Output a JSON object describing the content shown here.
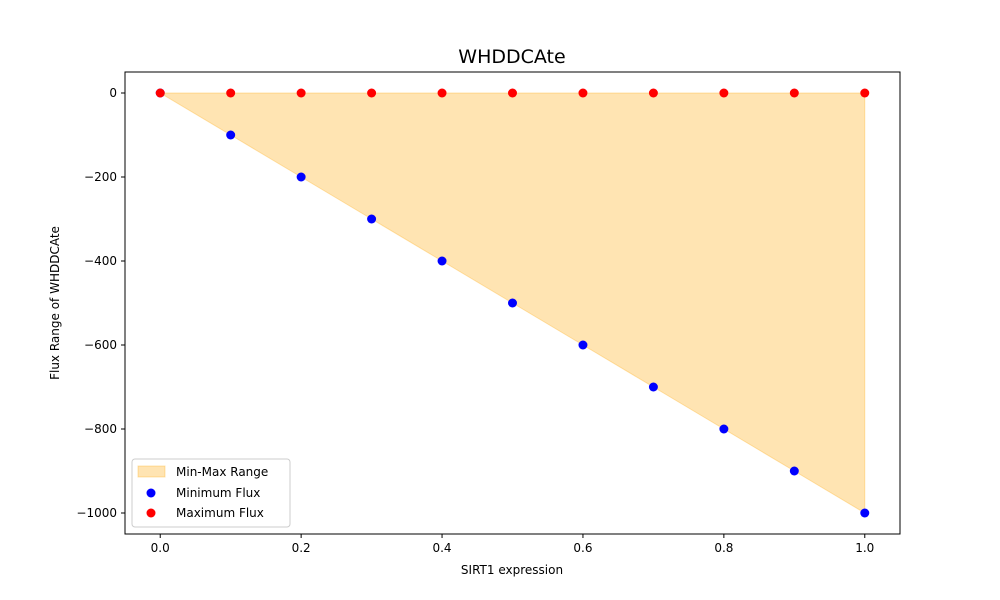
{
  "chart_data": {
    "type": "scatter",
    "title": "WHDDCAte",
    "xlabel": "SIRT1 expression",
    "ylabel": "Flux Range of WHDDCAte",
    "xlim": [
      -0.05,
      1.05
    ],
    "ylim": [
      -1050,
      50
    ],
    "x_ticks": [
      0.0,
      0.2,
      0.4,
      0.6,
      0.8,
      1.0
    ],
    "x_tick_labels": [
      "0.0",
      "0.2",
      "0.4",
      "0.6",
      "0.8",
      "1.0"
    ],
    "y_ticks": [
      0,
      -200,
      -400,
      -600,
      -800,
      -1000
    ],
    "y_tick_labels": [
      "0",
      "−200",
      "−400",
      "−600",
      "−800",
      "−1000"
    ],
    "x": [
      0.0,
      0.1,
      0.2,
      0.3,
      0.4,
      0.5,
      0.6,
      0.7,
      0.8,
      0.9,
      1.0
    ],
    "series": [
      {
        "name": "Minimum Flux",
        "color": "#0000ff",
        "values": [
          0,
          -100,
          -200,
          -300,
          -400,
          -500,
          -600,
          -700,
          -800,
          -900,
          -1000
        ]
      },
      {
        "name": "Maximum Flux",
        "color": "#ff0000",
        "values": [
          0,
          0,
          0,
          0,
          0,
          0,
          0,
          0,
          0,
          0,
          0
        ]
      }
    ],
    "fill": {
      "name": "Min-Max Range",
      "color": "#ffa500",
      "opacity": 0.3
    },
    "legend": {
      "placement": "lower-left",
      "entries": [
        "Min-Max Range",
        "Minimum Flux",
        "Maximum Flux"
      ]
    },
    "grid": false
  }
}
